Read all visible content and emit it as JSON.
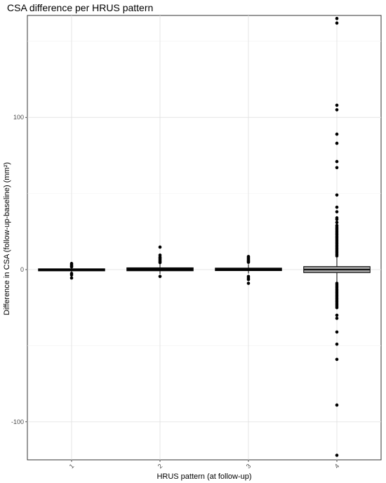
{
  "chart_data": {
    "type": "boxplot",
    "title": "CSA difference per HRUS pattern",
    "xlabel": "HRUS pattern (at follow-up)",
    "ylabel": "Difference in CSA (follow-up-baseline) (mm²)",
    "categories": [
      "1",
      "2",
      "3",
      "4"
    ],
    "y_ticks": [
      -100,
      0,
      100
    ],
    "y_tick_labels": [
      "-100",
      "0",
      "100"
    ],
    "ylim": [
      -125,
      167
    ],
    "grid": true,
    "boxes": [
      {
        "category": "1",
        "q1": -0.6,
        "median": -0.2,
        "q3": 0.3,
        "whisker_low": -1.5,
        "whisker_high": 1.2,
        "fill": "#111111",
        "outliers": [
          4.0,
          3.2,
          2.4,
          1.8,
          -2.5,
          -3.5,
          -5.5
        ]
      },
      {
        "category": "2",
        "q1": -0.8,
        "median": 0.1,
        "q3": 1.2,
        "whisker_low": -3.0,
        "whisker_high": 4.0,
        "fill": "#111111",
        "outliers": [
          14.8,
          9.5,
          8.2,
          7.5,
          6.8,
          6.0,
          5.2,
          4.6,
          -4.5
        ]
      },
      {
        "category": "3",
        "q1": -0.7,
        "median": 0.0,
        "q3": 1.0,
        "whisker_low": -2.5,
        "whisker_high": 3.5,
        "fill": "#111111",
        "outliers": [
          8.6,
          7.8,
          7.0,
          6.2,
          5.5,
          4.8,
          -4.5,
          -5.5,
          -6.5,
          -9.0
        ]
      },
      {
        "category": "4",
        "q1": -2.0,
        "median": 0.0,
        "q3": 2.0,
        "whisker_low": -8.0,
        "whisker_high": 8.0,
        "fill": "#9e9e9e",
        "outliers": [
          165,
          162,
          108,
          105,
          89,
          83,
          71,
          67,
          49,
          41,
          38,
          34,
          33,
          31,
          29,
          28,
          27,
          26,
          25,
          24,
          23,
          22,
          21,
          20,
          19,
          18,
          17,
          16,
          15,
          14,
          13,
          12,
          11,
          10,
          9,
          -9,
          -10,
          -11,
          -12,
          -13,
          -14,
          -15,
          -16,
          -17,
          -18,
          -19,
          -20,
          -21,
          -22,
          -23,
          -24,
          -25,
          -30,
          -32,
          -41,
          -49,
          -59,
          -89,
          -122
        ]
      }
    ]
  }
}
